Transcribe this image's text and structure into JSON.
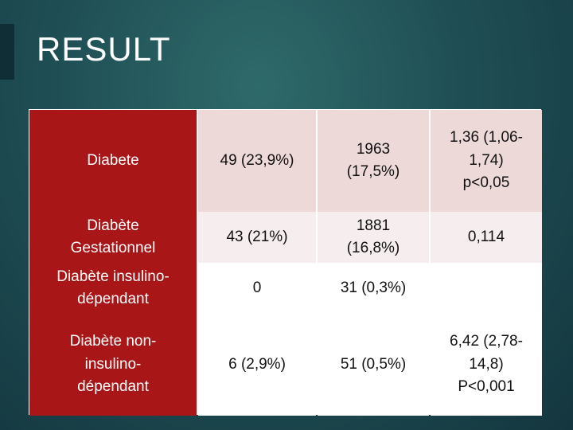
{
  "title": "RESULT",
  "table": {
    "rows": [
      {
        "label": "Diabete",
        "col2": "49 (23,9%)",
        "col3": "1963\n(17,5%)",
        "col4": "1,36 (1,06-\n1,74)\np<0,05"
      },
      {
        "label": "Diabète\nGestationnel",
        "col2": "43 (21%)",
        "col3": "1881\n(16,8%)",
        "col4": "0,114"
      },
      {
        "label": "Diabète insulino-\ndépendant",
        "col2": "0",
        "col3": "31 (0,3%)",
        "col4": ""
      },
      {
        "label": "Diabète non-\ninsulino-\ndépendant",
        "col2": "6 (2,9%)",
        "col3": "51 (0,5%)",
        "col4": "6,42 (2,78-\n14,8)\nP<0,001"
      }
    ]
  },
  "colors": {
    "label_column": "#a81618",
    "row_shade_1": "#eed9d9",
    "row_shade_2": "#f6eeee",
    "background": "#1f4f55"
  }
}
